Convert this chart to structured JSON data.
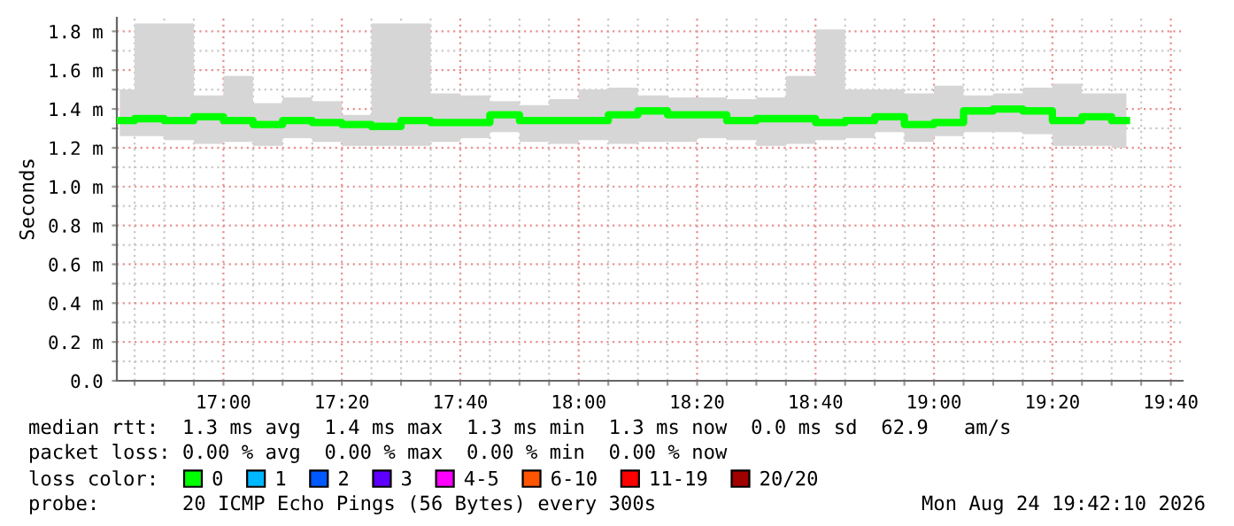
{
  "chart_data": {
    "type": "step",
    "ylabel": "Seconds",
    "legend_title": "loss color:",
    "legend": "bottom",
    "grid": true,
    "x": [
      16.7083,
      16.7917,
      16.875,
      16.9583,
      17.0417,
      17.125,
      17.2083,
      17.2917,
      17.375,
      17.4583,
      17.5417,
      17.625,
      17.7083,
      17.7917,
      17.875,
      17.9583,
      18.0417,
      18.125,
      18.2083,
      18.2917,
      18.375,
      18.4583,
      18.5417,
      18.625,
      18.7083,
      18.7917,
      18.875,
      18.9583,
      19.0417,
      19.125,
      19.2083,
      19.2917,
      19.375,
      19.4583,
      19.5417
    ],
    "series": [
      {
        "name": "0",
        "color": "#00ff00",
        "values": [
          1.34,
          1.35,
          1.34,
          1.36,
          1.34,
          1.32,
          1.34,
          1.33,
          1.32,
          1.31,
          1.34,
          1.33,
          1.33,
          1.37,
          1.34,
          1.34,
          1.34,
          1.37,
          1.39,
          1.37,
          1.37,
          1.34,
          1.35,
          1.35,
          1.33,
          1.34,
          1.36,
          1.32,
          1.33,
          1.39,
          1.4,
          1.39,
          1.34,
          1.36,
          1.34
        ],
        "lower": [
          1.26,
          1.26,
          1.24,
          1.22,
          1.23,
          1.21,
          1.25,
          1.23,
          1.21,
          1.21,
          1.21,
          1.23,
          1.25,
          1.28,
          1.23,
          1.22,
          1.24,
          1.22,
          1.23,
          1.23,
          1.25,
          1.24,
          1.21,
          1.22,
          1.24,
          1.25,
          1.28,
          1.23,
          1.26,
          1.28,
          1.28,
          1.27,
          1.21,
          1.21,
          1.2
        ],
        "upper": [
          1.5,
          1.84,
          1.84,
          1.47,
          1.57,
          1.43,
          1.46,
          1.44,
          1.37,
          1.84,
          1.84,
          1.48,
          1.47,
          1.44,
          1.42,
          1.45,
          1.5,
          1.51,
          1.47,
          1.46,
          1.46,
          1.45,
          1.46,
          1.57,
          1.81,
          1.5,
          1.5,
          1.48,
          1.52,
          1.47,
          1.48,
          1.51,
          1.53,
          1.48,
          1.48
        ]
      },
      {
        "type": "step",
        "name": "1",
        "color": "#00b8ff",
        "values": [
          null,
          null,
          null,
          null,
          null,
          null,
          null,
          null,
          null,
          null,
          null,
          null,
          null,
          null,
          null,
          null,
          null,
          null,
          null,
          null,
          null,
          null,
          null,
          null,
          null,
          null,
          null,
          null,
          null,
          null,
          null,
          null,
          null,
          null,
          null
        ]
      },
      {
        "type": "step",
        "name": "2",
        "color": "#0059ff",
        "values": [
          null,
          null,
          null,
          null,
          null,
          null,
          null,
          null,
          null,
          null,
          null,
          null,
          null,
          null,
          null,
          null,
          null,
          null,
          null,
          null,
          null,
          null,
          null,
          null,
          null,
          null,
          null,
          null,
          null,
          null,
          null,
          null,
          null,
          null,
          null
        ]
      },
      {
        "type": "step",
        "name": "3",
        "color": "#5e00ff",
        "values": [
          null,
          null,
          null,
          null,
          null,
          null,
          null,
          null,
          null,
          null,
          null,
          null,
          null,
          null,
          null,
          null,
          null,
          null,
          null,
          null,
          null,
          null,
          null,
          null,
          null,
          null,
          null,
          null,
          null,
          null,
          null,
          null,
          null,
          null,
          null
        ]
      },
      {
        "type": "step",
        "name": "4-5",
        "color": "#ff00ff",
        "values": [
          null,
          null,
          null,
          null,
          null,
          null,
          null,
          null,
          null,
          null,
          null,
          null,
          null,
          null,
          null,
          null,
          null,
          null,
          null,
          null,
          null,
          null,
          null,
          null,
          null,
          null,
          null,
          null,
          null,
          null,
          null,
          null,
          null,
          null,
          null
        ]
      },
      {
        "type": "step",
        "name": "6-10",
        "color": "#ff5500",
        "values": [
          null,
          null,
          null,
          null,
          null,
          null,
          null,
          null,
          null,
          null,
          null,
          null,
          null,
          null,
          null,
          null,
          null,
          null,
          null,
          null,
          null,
          null,
          null,
          null,
          null,
          null,
          null,
          null,
          null,
          null,
          null,
          null,
          null,
          null,
          null
        ]
      },
      {
        "type": "step",
        "name": "11-19",
        "color": "#ff0000",
        "values": [
          null,
          null,
          null,
          null,
          null,
          null,
          null,
          null,
          null,
          null,
          null,
          null,
          null,
          null,
          null,
          null,
          null,
          null,
          null,
          null,
          null,
          null,
          null,
          null,
          null,
          null,
          null,
          null,
          null,
          null,
          null,
          null,
          null,
          null,
          null
        ]
      },
      {
        "type": "step",
        "name": "20/20",
        "color": "#a10000",
        "values": [
          null,
          null,
          null,
          null,
          null,
          null,
          null,
          null,
          null,
          null,
          null,
          null,
          null,
          null,
          null,
          null,
          null,
          null,
          null,
          null,
          null,
          null,
          null,
          null,
          null,
          null,
          null,
          null,
          null,
          null,
          null,
          null,
          null,
          null,
          null
        ]
      }
    ],
    "xlim": [
      16.7,
      19.7
    ],
    "xticks": [
      {
        "value": 16.75,
        "label": null
      },
      {
        "value": 16.8333,
        "label": null
      },
      {
        "value": 16.9167,
        "label": null
      },
      {
        "value": 17.0,
        "label": "17:00"
      },
      {
        "value": 17.0833,
        "label": null
      },
      {
        "value": 17.1667,
        "label": null
      },
      {
        "value": 17.25,
        "label": null
      },
      {
        "value": 17.3333,
        "label": "17:20"
      },
      {
        "value": 17.4167,
        "label": null
      },
      {
        "value": 17.5,
        "label": null
      },
      {
        "value": 17.5833,
        "label": null
      },
      {
        "value": 17.6667,
        "label": "17:40"
      },
      {
        "value": 17.75,
        "label": null
      },
      {
        "value": 17.8333,
        "label": null
      },
      {
        "value": 17.9167,
        "label": null
      },
      {
        "value": 18.0,
        "label": "18:00"
      },
      {
        "value": 18.0833,
        "label": null
      },
      {
        "value": 18.1667,
        "label": null
      },
      {
        "value": 18.25,
        "label": null
      },
      {
        "value": 18.3333,
        "label": "18:20"
      },
      {
        "value": 18.4167,
        "label": null
      },
      {
        "value": 18.5,
        "label": null
      },
      {
        "value": 18.5833,
        "label": null
      },
      {
        "value": 18.6667,
        "label": "18:40"
      },
      {
        "value": 18.75,
        "label": null
      },
      {
        "value": 18.8333,
        "label": null
      },
      {
        "value": 18.9167,
        "label": null
      },
      {
        "value": 19.0,
        "label": "19:00"
      },
      {
        "value": 19.0833,
        "label": null
      },
      {
        "value": 19.1667,
        "label": null
      },
      {
        "value": 19.25,
        "label": null
      },
      {
        "value": 19.3333,
        "label": "19:20"
      },
      {
        "value": 19.4167,
        "label": null
      },
      {
        "value": 19.5,
        "label": null
      },
      {
        "value": 19.5833,
        "label": null
      },
      {
        "value": 19.6667,
        "label": "19:40"
      }
    ],
    "ylim": [
      0,
      1.87
    ],
    "yticks": [
      {
        "value": 0,
        "label": "0.0"
      },
      {
        "value": 0.1,
        "label": null
      },
      {
        "value": 0.2,
        "label": "0.2 m"
      },
      {
        "value": 0.3,
        "label": null
      },
      {
        "value": 0.4,
        "label": "0.4 m"
      },
      {
        "value": 0.5,
        "label": null
      },
      {
        "value": 0.6,
        "label": "0.6 m"
      },
      {
        "value": 0.7,
        "label": null
      },
      {
        "value": 0.8,
        "label": "0.8 m"
      },
      {
        "value": 0.9,
        "label": null
      },
      {
        "value": 1.0,
        "label": "1.0 m"
      },
      {
        "value": 1.1,
        "label": null
      },
      {
        "value": 1.2,
        "label": "1.2 m"
      },
      {
        "value": 1.3,
        "label": null
      },
      {
        "value": 1.4,
        "label": "1.4 m"
      },
      {
        "value": 1.5,
        "label": null
      },
      {
        "value": 1.6,
        "label": "1.6 m"
      },
      {
        "value": 1.7,
        "label": null
      },
      {
        "value": 1.8,
        "label": "1.8 m"
      }
    ],
    "annotations": [
      "median rtt:  1.3 ms avg  1.4 ms max  1.3 ms min  1.3 ms now  0.0 ms sd  62.9   am/s",
      "packet loss: 0.00 % avg  0.00 % max  0.00 % min  0.00 % now",
      "probe:       20 ICMP Echo Pings (56 Bytes) every 300s",
      "Mon Aug 24 19:42:10 2026"
    ]
  }
}
